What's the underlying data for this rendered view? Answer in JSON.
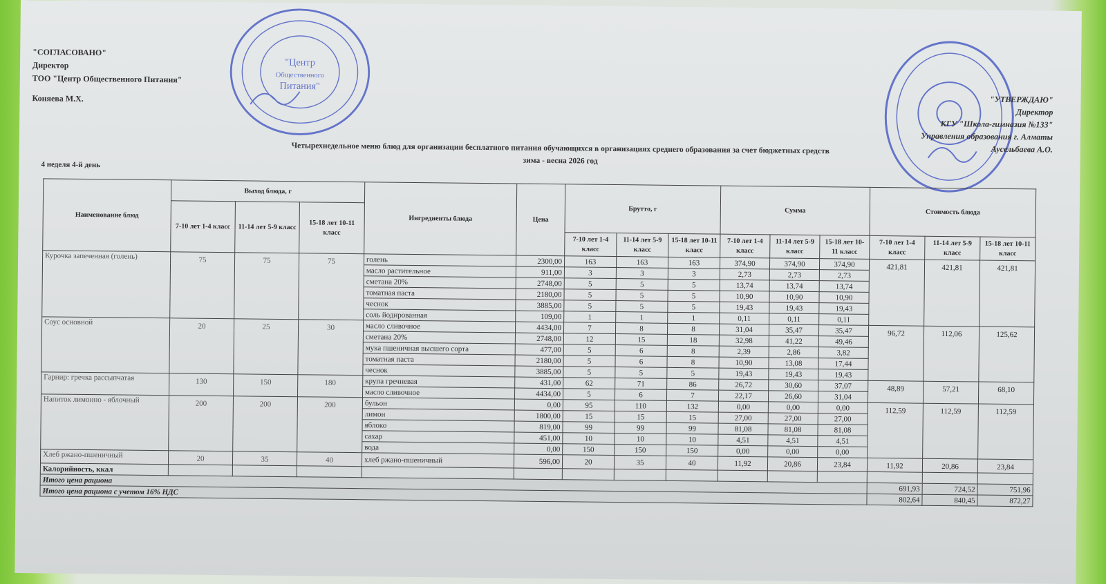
{
  "approval_left": {
    "line1": "\"СОГЛАСОВАНО\"",
    "line2": "Директор",
    "line3": "ТОО \"Центр Общественного Питания\"",
    "line4": "Коняева М.Х."
  },
  "stamp_left": {
    "text1": "\"Центр",
    "text2": "Общественного",
    "text3": "Питания\""
  },
  "approval_right": {
    "line1": "\"УТВЕРЖДАЮ\"",
    "line2": "Директор",
    "line3": "КГУ \"Школа-гимназия №133\"",
    "line4": "Управления образования г. Алматы",
    "line5": "Аусельбаева А.О."
  },
  "title": {
    "line1": "Четырехнедельное меню блюд для организации бесплатного питания обучающихся в организациях среднего образования за счет бюджетных средств",
    "line2": "зима - весна 2026 год"
  },
  "week_day": "4 неделя 4-й день",
  "headers": {
    "dish": "Наименование блюд",
    "output": "Выход блюда, г",
    "ingredients": "Ингредиенты блюда",
    "price": "Цена",
    "brutto": "Брутто, г",
    "sum": "Сумма",
    "cost": "Стоимость блюда",
    "age_groups": [
      "7-10 лет 1-4 класс",
      "11-14 лет 5-9 класс",
      "15-18 лет 10-11 класс"
    ]
  },
  "dishes": [
    {
      "name": "Курочка запеченная (голень)",
      "output": [
        "75",
        "75",
        "75"
      ],
      "cost": [
        "421,81",
        "421,81",
        "421,81"
      ],
      "ingredients": [
        {
          "name": "голень",
          "price": "2300,00",
          "brutto": [
            "163",
            "163",
            "163"
          ],
          "sum": [
            "374,90",
            "374,90",
            "374,90"
          ]
        },
        {
          "name": "масло растительное",
          "price": "911,00",
          "brutto": [
            "3",
            "3",
            "3"
          ],
          "sum": [
            "2,73",
            "2,73",
            "2,73"
          ]
        },
        {
          "name": "сметана 20%",
          "price": "2748,00",
          "brutto": [
            "5",
            "5",
            "5"
          ],
          "sum": [
            "13,74",
            "13,74",
            "13,74"
          ]
        },
        {
          "name": "томатная паста",
          "price": "2180,00",
          "brutto": [
            "5",
            "5",
            "5"
          ],
          "sum": [
            "10,90",
            "10,90",
            "10,90"
          ]
        },
        {
          "name": "чеснок",
          "price": "3885,00",
          "brutto": [
            "5",
            "5",
            "5"
          ],
          "sum": [
            "19,43",
            "19,43",
            "19,43"
          ]
        },
        {
          "name": "соль йодированная",
          "price": "109,00",
          "brutto": [
            "1",
            "1",
            "1"
          ],
          "sum": [
            "0,11",
            "0,11",
            "0,11"
          ]
        }
      ]
    },
    {
      "name": "Соус основной",
      "output": [
        "20",
        "25",
        "30"
      ],
      "cost": [
        "96,72",
        "112,06",
        "125,62"
      ],
      "ingredients": [
        {
          "name": "масло сливочное",
          "price": "4434,00",
          "brutto": [
            "7",
            "8",
            "8"
          ],
          "sum": [
            "31,04",
            "35,47",
            "35,47"
          ]
        },
        {
          "name": "сметана 20%",
          "price": "2748,00",
          "brutto": [
            "12",
            "15",
            "18"
          ],
          "sum": [
            "32,98",
            "41,22",
            "49,46"
          ]
        },
        {
          "name": "мука пшеничная высшего сорта",
          "price": "477,00",
          "brutto": [
            "5",
            "6",
            "8"
          ],
          "sum": [
            "2,39",
            "2,86",
            "3,82"
          ]
        },
        {
          "name": "томатная паста",
          "price": "2180,00",
          "brutto": [
            "5",
            "6",
            "8"
          ],
          "sum": [
            "10,90",
            "13,08",
            "17,44"
          ]
        },
        {
          "name": "чеснок",
          "price": "3885,00",
          "brutto": [
            "5",
            "5",
            "5"
          ],
          "sum": [
            "19,43",
            "19,43",
            "19,43"
          ]
        }
      ]
    },
    {
      "name": "Гарнир: гречка рассыпчатая",
      "output": [
        "130",
        "150",
        "180"
      ],
      "cost": [
        "48,89",
        "57,21",
        "68,10"
      ],
      "ingredients": [
        {
          "name": "крупа гречневая",
          "price": "431,00",
          "brutto": [
            "62",
            "71",
            "86"
          ],
          "sum": [
            "26,72",
            "30,60",
            "37,07"
          ]
        },
        {
          "name": "масло сливочное",
          "price": "4434,00",
          "brutto": [
            "5",
            "6",
            "7"
          ],
          "sum": [
            "22,17",
            "26,60",
            "31,04"
          ]
        }
      ]
    },
    {
      "name": "Напиток лимонно - яблочный",
      "output": [
        "200",
        "200",
        "200"
      ],
      "cost": [
        "112,59",
        "112,59",
        "112,59"
      ],
      "ingredients": [
        {
          "name": "бульон",
          "price": "0,00",
          "brutto": [
            "95",
            "110",
            "132"
          ],
          "sum": [
            "0,00",
            "0,00",
            "0,00"
          ]
        },
        {
          "name": "лимон",
          "price": "1800,00",
          "brutto": [
            "15",
            "15",
            "15"
          ],
          "sum": [
            "27,00",
            "27,00",
            "27,00"
          ]
        },
        {
          "name": "яблоко",
          "price": "819,00",
          "brutto": [
            "99",
            "99",
            "99"
          ],
          "sum": [
            "81,08",
            "81,08",
            "81,08"
          ]
        },
        {
          "name": "сахар",
          "price": "451,00",
          "brutto": [
            "10",
            "10",
            "10"
          ],
          "sum": [
            "4,51",
            "4,51",
            "4,51"
          ]
        },
        {
          "name": "вода",
          "price": "0,00",
          "brutto": [
            "150",
            "150",
            "150"
          ],
          "sum": [
            "0,00",
            "0,00",
            "0,00"
          ]
        }
      ]
    },
    {
      "name": "Хлеб ржано-пшеничный",
      "output": [
        "20",
        "35",
        "40"
      ],
      "cost": [
        "11,92",
        "20,86",
        "23,84"
      ],
      "ingredients": [
        {
          "name": "хлеб ржано-пшеничный",
          "price": "596,00",
          "brutto": [
            "20",
            "35",
            "40"
          ],
          "sum": [
            "11,92",
            "20,86",
            "23,84"
          ]
        }
      ]
    }
  ],
  "calories_label": "Калорийность, ккал",
  "total": {
    "label": "Итого цена рациона",
    "values": [
      "691,93",
      "724,52",
      "751,96"
    ]
  },
  "total_vat": {
    "label": "Итого цена рациона с учетом 16% НДС",
    "values": [
      "802,64",
      "840,45",
      "872,27"
    ]
  },
  "colors": {
    "stamp": "#3a4fc0",
    "background": "#8cd04a"
  }
}
